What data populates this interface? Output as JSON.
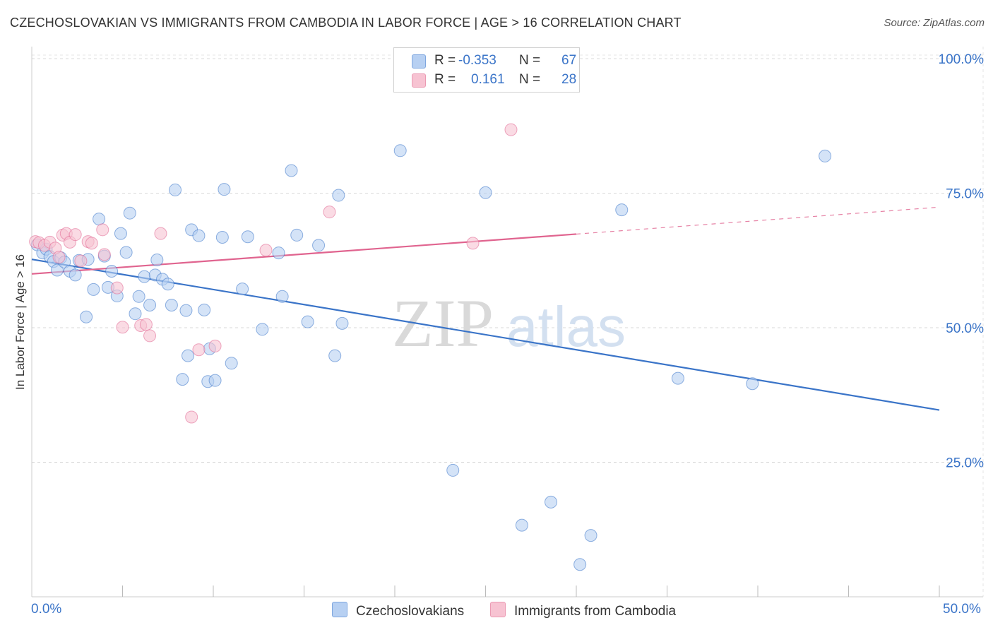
{
  "title": "CZECHOSLOVAKIAN VS IMMIGRANTS FROM CAMBODIA IN LABOR FORCE | AGE > 16 CORRELATION CHART",
  "source": "Source: ZipAtlas.com",
  "watermark": {
    "zip": "ZIP",
    "atlas": "atlas"
  },
  "legend": {
    "r_label": "R =",
    "n_label": "N =",
    "rows": [
      {
        "r": "-0.353",
        "n": "67",
        "color": "#b7d0f2"
      },
      {
        "r": "0.161",
        "n": "28",
        "color": "#f7c3d2"
      }
    ]
  },
  "bottom_legend": [
    "Czechoslovakians",
    "Immigrants from Cambodia"
  ],
  "x_axis_labels": {
    "min": "0.0%",
    "max": "50.0%"
  },
  "chart_data": {
    "type": "scatter",
    "ylabel": "In Labor Force | Age > 16",
    "xlim": [
      0,
      50
    ],
    "ylim": [
      0,
      100
    ],
    "y_ticks": [
      {
        "value": 100,
        "label": "100.0%"
      },
      {
        "value": 75,
        "label": "75.0%"
      },
      {
        "value": 50,
        "label": "50.0%"
      },
      {
        "value": 25,
        "label": "25.0%"
      }
    ],
    "grid": true,
    "colors": {
      "blue": "#3a74c8",
      "blue_fill": "#b7d0f2",
      "pink": "#e0648f",
      "pink_fill": "#f7c3d2"
    },
    "series": [
      {
        "name": "Czechoslovakians",
        "color": "#3a74c8",
        "fill": "#b7d0f2",
        "trend": {
          "x": [
            0,
            50
          ],
          "y": [
            62.7,
            34.7
          ],
          "dashed_from": null
        },
        "points": [
          [
            0.3,
            65.4
          ],
          [
            0.6,
            63.9
          ],
          [
            0.8,
            64.6
          ],
          [
            1.0,
            63.2
          ],
          [
            1.2,
            62.3
          ],
          [
            1.4,
            60.7
          ],
          [
            1.6,
            63.0
          ],
          [
            1.8,
            62.2
          ],
          [
            2.1,
            60.5
          ],
          [
            2.4,
            59.8
          ],
          [
            2.6,
            62.5
          ],
          [
            3.0,
            52.0
          ],
          [
            3.1,
            62.7
          ],
          [
            3.4,
            57.1
          ],
          [
            3.7,
            70.2
          ],
          [
            4.0,
            63.3
          ],
          [
            4.2,
            57.5
          ],
          [
            4.4,
            60.5
          ],
          [
            4.7,
            55.9
          ],
          [
            4.9,
            67.5
          ],
          [
            5.2,
            64.0
          ],
          [
            5.4,
            71.3
          ],
          [
            5.7,
            52.6
          ],
          [
            5.9,
            55.8
          ],
          [
            6.2,
            59.5
          ],
          [
            6.5,
            54.2
          ],
          [
            6.8,
            59.8
          ],
          [
            6.9,
            62.6
          ],
          [
            7.2,
            59.0
          ],
          [
            7.5,
            58.1
          ],
          [
            7.7,
            54.2
          ],
          [
            7.9,
            75.6
          ],
          [
            8.3,
            40.4
          ],
          [
            8.5,
            53.2
          ],
          [
            8.6,
            44.8
          ],
          [
            8.8,
            68.2
          ],
          [
            9.2,
            67.1
          ],
          [
            9.5,
            53.3
          ],
          [
            9.7,
            40.0
          ],
          [
            9.8,
            46.1
          ],
          [
            10.1,
            40.2
          ],
          [
            10.5,
            66.8
          ],
          [
            10.6,
            75.7
          ],
          [
            11.0,
            43.4
          ],
          [
            11.6,
            57.2
          ],
          [
            11.9,
            66.9
          ],
          [
            12.7,
            49.7
          ],
          [
            13.6,
            63.9
          ],
          [
            13.8,
            55.8
          ],
          [
            14.3,
            79.2
          ],
          [
            14.6,
            67.2
          ],
          [
            15.2,
            51.1
          ],
          [
            15.8,
            65.3
          ],
          [
            16.7,
            44.8
          ],
          [
            16.9,
            74.6
          ],
          [
            17.1,
            50.8
          ],
          [
            20.3,
            82.9
          ],
          [
            23.2,
            23.5
          ],
          [
            25.0,
            75.1
          ],
          [
            27.0,
            13.3
          ],
          [
            28.6,
            17.6
          ],
          [
            30.2,
            6.0
          ],
          [
            30.8,
            11.4
          ],
          [
            32.5,
            71.9
          ],
          [
            35.6,
            40.6
          ],
          [
            39.7,
            39.6
          ],
          [
            43.7,
            81.9
          ]
        ]
      },
      {
        "name": "Immigrants from Cambodia",
        "color": "#e0648f",
        "fill": "#f7c3d2",
        "trend": {
          "x": [
            0,
            30.0,
            50
          ],
          "y": [
            60.0,
            67.4,
            72.4
          ],
          "dashed_from": 30.0
        },
        "points": [
          [
            0.2,
            66.0
          ],
          [
            0.4,
            65.8
          ],
          [
            0.7,
            65.3
          ],
          [
            1.0,
            65.9
          ],
          [
            1.3,
            64.8
          ],
          [
            1.5,
            63.1
          ],
          [
            1.7,
            67.2
          ],
          [
            1.9,
            67.5
          ],
          [
            2.1,
            65.9
          ],
          [
            2.4,
            67.3
          ],
          [
            2.7,
            62.4
          ],
          [
            3.1,
            66.0
          ],
          [
            3.3,
            65.7
          ],
          [
            3.9,
            68.2
          ],
          [
            4.0,
            63.6
          ],
          [
            4.7,
            57.4
          ],
          [
            5.0,
            50.1
          ],
          [
            6.0,
            50.4
          ],
          [
            6.3,
            50.6
          ],
          [
            6.5,
            48.5
          ],
          [
            7.1,
            67.5
          ],
          [
            8.8,
            33.4
          ],
          [
            9.2,
            45.9
          ],
          [
            10.1,
            46.6
          ],
          [
            12.9,
            64.4
          ],
          [
            16.4,
            71.5
          ],
          [
            24.3,
            65.7
          ],
          [
            26.4,
            86.8
          ]
        ]
      }
    ]
  }
}
